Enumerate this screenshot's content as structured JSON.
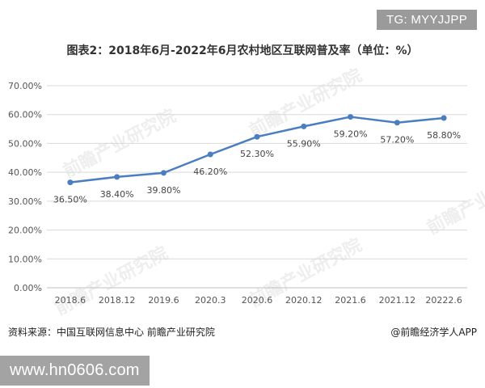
{
  "tag_text": "TG: MYYJJPP",
  "watermark_text": "前瞻产业研究院",
  "source_text": "资料来源：中国互联网信息中心 前瞻产业研究院",
  "brand_text": "@前瞻经济学人APP",
  "website_text": "www.hn0606.com",
  "colors": {
    "line": "#4a7ec0",
    "grid": "#d9d9d9",
    "axis": "#bfbfbf",
    "label": "#555555"
  },
  "chart_data": {
    "type": "line",
    "title": "图表2：2018年6月-2022年6月农村地区互联网普及率（单位：%）",
    "categories": [
      "2018.6",
      "2018.12",
      "2019.6",
      "2020.3",
      "2020.6",
      "2020.12",
      "2021.6",
      "2021.12",
      "20222.6"
    ],
    "series": [
      {
        "values": [
          36.5,
          38.4,
          39.8,
          46.2,
          52.3,
          55.9,
          59.2,
          57.2,
          58.8
        ]
      }
    ],
    "data_labels": [
      "36.50%",
      "38.40%",
      "39.80%",
      "46.20%",
      "52.30%",
      "55.90%",
      "59.20%",
      "57.20%",
      "58.80%"
    ],
    "y_ticks": [
      "0.00%",
      "10.00%",
      "20.00%",
      "30.00%",
      "40.00%",
      "50.00%",
      "60.00%",
      "70.00%"
    ],
    "ylim": [
      0,
      70
    ],
    "grid": true
  }
}
